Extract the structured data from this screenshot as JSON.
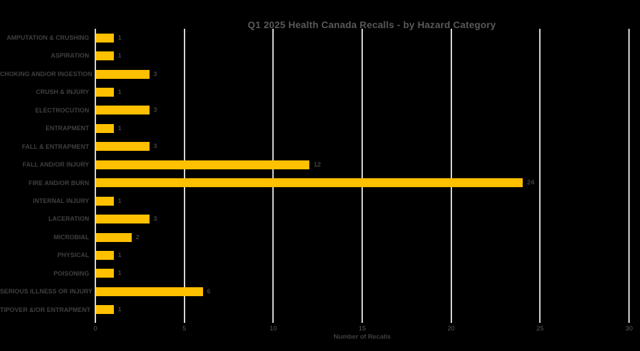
{
  "chart_data": {
    "type": "bar",
    "orientation": "horizontal",
    "title": "Q1 2025 Health Canada Recalls - by Hazard Category",
    "xlabel": "Number of Recalls",
    "ylabel": "",
    "categories": [
      "AMPUTATION & CRUSHING",
      "ASPIRATION",
      "CHOKING AND/OR INGESTION",
      "CRUSH & INJURY",
      "ELECTROCUTION",
      "ENTRAPMENT",
      "FALL & ENTRAPMENT",
      "FALL AND/OR INJURY",
      "FIRE AND/OR BURN",
      "INTERNAL INJURY",
      "LACERATION",
      "MICROBIAL",
      "PHYSICAL",
      "POISONING",
      "SERIOUS ILLNESS OR INJURY",
      "TIPOVER &/OR ENTRAPMENT"
    ],
    "values": [
      1,
      1,
      3,
      1,
      3,
      1,
      3,
      12,
      24,
      1,
      3,
      2,
      1,
      1,
      6,
      1
    ],
    "xlim": [
      0,
      30
    ],
    "xticks": [
      0,
      5,
      10,
      15,
      20,
      25,
      30
    ],
    "grid": true,
    "legend": false,
    "data_labels": true
  },
  "colors": {
    "background": "#000000",
    "bar": "#FFC000",
    "grid": "#D9D9D9",
    "title": "#595959",
    "category_label": "#404040",
    "value_label": "#404040",
    "tick_label": "#595959",
    "axis_title": "#404040"
  }
}
